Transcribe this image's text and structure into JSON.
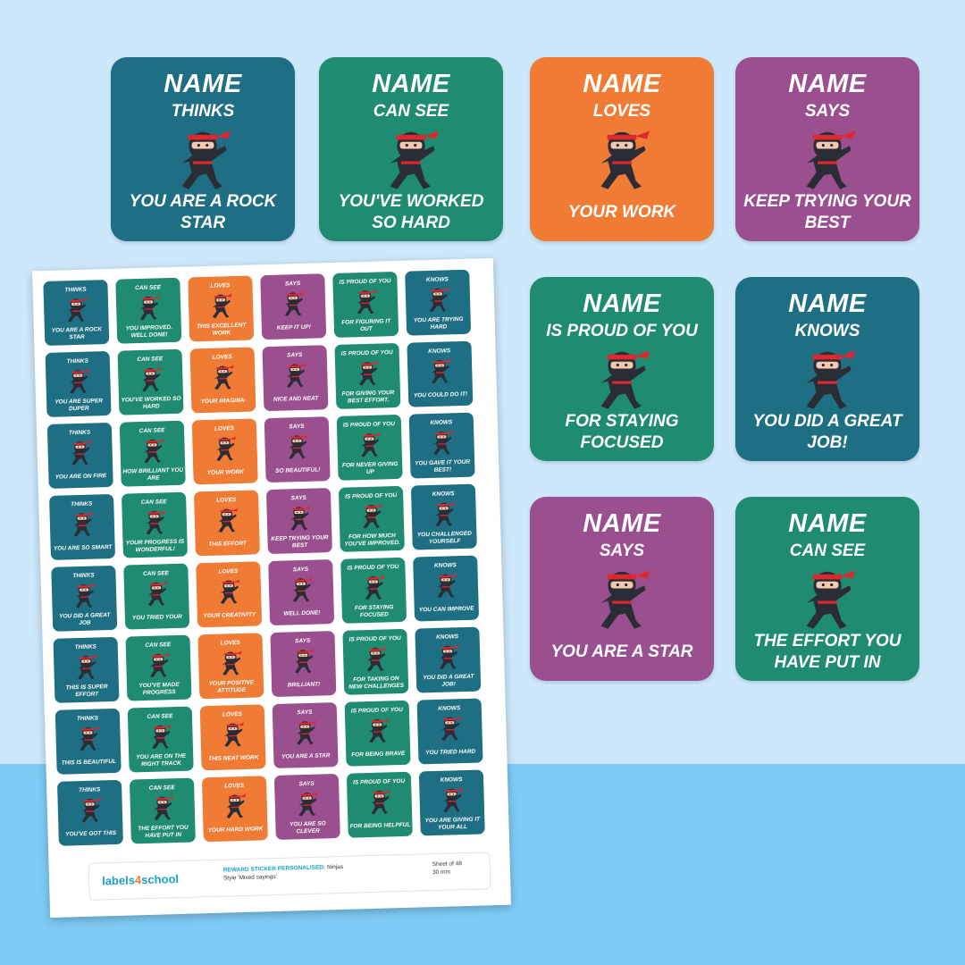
{
  "colors": {
    "teal": "#1e6e84",
    "green": "#1f8b70",
    "orange": "#ef7b34",
    "purple": "#9a4f8e"
  },
  "big_stickers": [
    {
      "name": "NAME",
      "verb": "THINKS",
      "phrase": "YOU ARE A ROCK STAR",
      "color": "teal"
    },
    {
      "name": "NAME",
      "verb": "CAN SEE",
      "phrase": "YOU'VE WORKED SO HARD",
      "color": "green"
    },
    {
      "name": "NAME",
      "verb": "LOVES",
      "phrase": "YOUR WORK",
      "color": "orange"
    },
    {
      "name": "NAME",
      "verb": "SAYS",
      "phrase": "KEEP TRYING YOUR BEST",
      "color": "purple"
    },
    {
      "name": "NAME",
      "verb": "IS PROUD OF YOU",
      "phrase": "FOR STAYING FOCUSED",
      "color": "green"
    },
    {
      "name": "NAME",
      "verb": "KNOWS",
      "phrase": "YOU DID A GREAT JOB!",
      "color": "teal"
    },
    {
      "name": "NAME",
      "verb": "SAYS",
      "phrase": "YOU ARE A STAR",
      "color": "purple"
    },
    {
      "name": "NAME",
      "verb": "CAN SEE",
      "phrase": "THE EFFORT YOU HAVE PUT IN",
      "color": "green"
    }
  ],
  "sheet": {
    "columns": [
      {
        "verb": "THINKS",
        "color": "teal"
      },
      {
        "verb": "CAN SEE",
        "color": "green"
      },
      {
        "verb": "LOVES",
        "color": "orange"
      },
      {
        "verb": "SAYS",
        "color": "purple"
      },
      {
        "verb": "IS PROUD OF YOU",
        "color": "green"
      },
      {
        "verb": "KNOWS",
        "color": "teal"
      }
    ],
    "rows": [
      [
        "YOU ARE A ROCK STAR",
        "YOU IMPROVED. WELL DONE!",
        "THIS EXCELLENT WORK",
        "KEEP IT UP!",
        "FOR FIGURING IT OUT",
        "YOU ARE TRYING HARD"
      ],
      [
        "YOU ARE SUPER DUPER",
        "YOU'VE WORKED SO HARD",
        "YOUR IMAGINA-",
        "NICE AND NEAT",
        "FOR GIVING YOUR BEST EFFORT.",
        "YOU COULD DO IT!"
      ],
      [
        "YOU ARE ON FIRE",
        "HOW BRILLIANT YOU ARE",
        "YOUR WORK",
        "SO BEAUTIFUL!",
        "FOR NEVER GIVING UP",
        "YOU GAVE IT YOUR BEST!"
      ],
      [
        "YOU ARE SO SMART",
        "YOUR PROGRESS IS WONDERFUL!",
        "THIS EFFORT",
        "KEEP TRYING YOUR BEST",
        "FOR HOW MUCH YOU'VE IMPROVED.",
        "YOU CHALLENGED YOURSELF"
      ],
      [
        "YOU DID A GREAT JOB",
        "YOU TRIED YOUR",
        "YOUR CREATIVITY",
        "WELL DONE!",
        "FOR STAYING FOCUSED",
        "YOU CAN IMPROVE"
      ],
      [
        "THIS IS SUPER EFFORT",
        "YOU'VE MADE PROGRESS",
        "YOUR POSITIVE ATTITUDE",
        "BRILLIANT!",
        "FOR TAKING ON NEW CHALLENGES",
        "YOU DID A GREAT JOB!"
      ],
      [
        "THIS IS BEAUTIFUL",
        "YOU ARE ON THE RIGHT TRACK",
        "THIS NEAT WORK",
        "YOU ARE A STAR",
        "FOR BEING BRAVE",
        "YOU TRIED HARD"
      ],
      [
        "YOU'VE GOT THIS",
        "THE EFFORT YOU HAVE PUT IN",
        "YOUR HARD WORK",
        "YOU ARE SO CLEVER",
        "FOR BEING HELPFUL",
        "YOU ARE GIVING IT YOUR ALL"
      ]
    ],
    "footer": {
      "logo_a": "labels",
      "logo_b": "4",
      "logo_c": "school",
      "product_label": "REWARD STICKER PERSONALISED:",
      "product_name": "Ninjas",
      "style": "Style 'Mixed sayings'",
      "sheet_count": "Sheet of 48",
      "size": "30 mm"
    }
  }
}
